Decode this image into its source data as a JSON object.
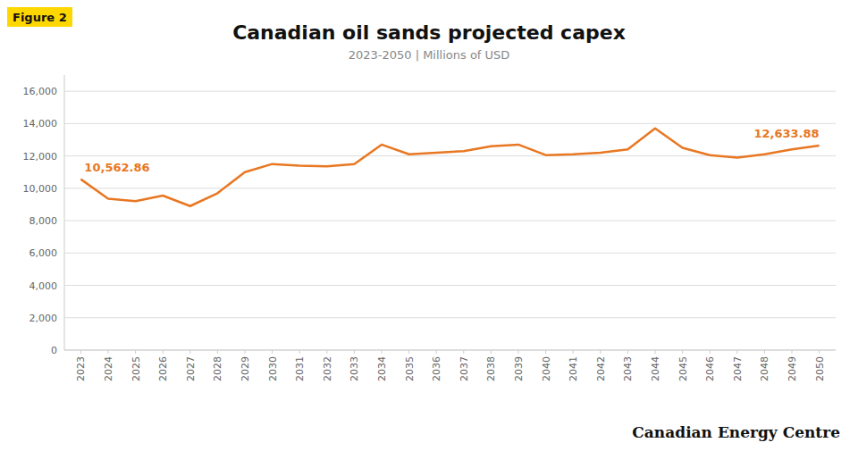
{
  "chart_data": {
    "type": "line",
    "title": "Canadian oil sands projected capex",
    "subtitle": "2023-2050  |  Millions of USD",
    "figure_label": "Figure 2",
    "watermark": "Canadian Energy Centre",
    "color": "#E87722",
    "grid": true,
    "x": [
      2023,
      2024,
      2025,
      2026,
      2027,
      2028,
      2029,
      2030,
      2031,
      2032,
      2033,
      2034,
      2035,
      2036,
      2037,
      2038,
      2039,
      2040,
      2041,
      2042,
      2043,
      2044,
      2045,
      2046,
      2047,
      2048,
      2049,
      2050
    ],
    "values": [
      10562.86,
      9350,
      9200,
      9550,
      8900,
      9700,
      11000,
      11500,
      11400,
      11350,
      11500,
      12700,
      12100,
      12200,
      12300,
      12600,
      12700,
      12050,
      12100,
      12200,
      12400,
      13700,
      12500,
      12050,
      11900,
      12100,
      12400,
      12633.88
    ],
    "xlim": [
      2022.4,
      2050.6
    ],
    "xticks": [
      2023,
      2024,
      2025,
      2026,
      2027,
      2028,
      2029,
      2030,
      2031,
      2032,
      2033,
      2034,
      2035,
      2036,
      2037,
      2038,
      2039,
      2040,
      2041,
      2042,
      2043,
      2044,
      2045,
      2046,
      2047,
      2048,
      2049,
      2050
    ],
    "ylim": [
      0,
      17000
    ],
    "yticks": [
      0,
      {
        "value": 2000,
        "label": "2,000"
      },
      {
        "value": 4000,
        "label": "4,000"
      },
      {
        "value": 6000,
        "label": "6,000"
      },
      {
        "value": 8000,
        "label": "8,000"
      },
      {
        "value": 10000,
        "label": "10,000"
      },
      {
        "value": 12000,
        "label": "12,000"
      },
      {
        "value": 14000,
        "label": "14,000"
      },
      {
        "value": 16000,
        "label": "16,000"
      }
    ],
    "annotations": [
      {
        "text": "10,562.86",
        "x": 2023,
        "y": 10562.86
      },
      {
        "text": "12,633.88",
        "x": 2050,
        "y": 12633.88
      }
    ]
  }
}
